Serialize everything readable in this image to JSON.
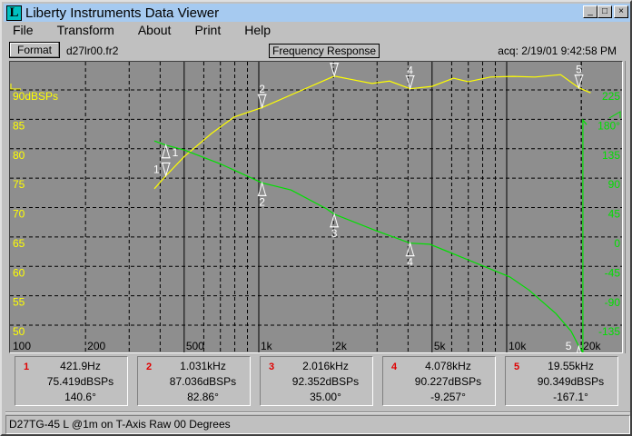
{
  "window": {
    "title": "Liberty Instruments Data Viewer",
    "logo_letter": "L",
    "buttons": [
      "_",
      "□",
      "×"
    ]
  },
  "menu": [
    "File",
    "Transform",
    "About",
    "Print",
    "Help"
  ],
  "toolbar": {
    "format_label": "Format",
    "file_name": "d27lr00.fr2",
    "mode": "Frequency Response",
    "acquired": "acq: 2/19/01 9:42:58 PM"
  },
  "colors": {
    "plot_bg": "#8e8e8e",
    "magnitude": "#ffff00",
    "phase": "#00e000",
    "grid": "#000000",
    "marker": "#ffffff",
    "marker_number": "#e00000"
  },
  "chart_data": {
    "type": "line",
    "x_scale": "log",
    "xlim": [
      100,
      25000
    ],
    "x_ticks": [
      {
        "v": 100,
        "label": "100"
      },
      {
        "v": 200,
        "label": "200"
      },
      {
        "v": 500,
        "label": "500"
      },
      {
        "v": 1000,
        "label": "1k"
      },
      {
        "v": 2000,
        "label": "2k"
      },
      {
        "v": 5000,
        "label": "5k"
      },
      {
        "v": 10000,
        "label": "10k"
      },
      {
        "v": 20000,
        "label": "20k"
      }
    ],
    "left_axis": {
      "unit": "dBSPs",
      "ylim": [
        50,
        90
      ],
      "ticks": [
        {
          "v": 90,
          "label": "90dBSPs"
        },
        {
          "v": 85,
          "label": "85"
        },
        {
          "v": 80,
          "label": "80"
        },
        {
          "v": 75,
          "label": "75"
        },
        {
          "v": 70,
          "label": "70"
        },
        {
          "v": 65,
          "label": "65"
        },
        {
          "v": 60,
          "label": "60"
        },
        {
          "v": 55,
          "label": "55"
        },
        {
          "v": 50,
          "label": "50"
        }
      ]
    },
    "right_axis": {
      "unit": "degrees",
      "ylim": [
        -135,
        225
      ],
      "ticks": [
        {
          "v": 225,
          "label": "225"
        },
        {
          "v": 180,
          "label": "180°"
        },
        {
          "v": 135,
          "label": "135"
        },
        {
          "v": 90,
          "label": "90"
        },
        {
          "v": 45,
          "label": "45"
        },
        {
          "v": 0,
          "label": "0"
        },
        {
          "v": -45,
          "label": "-45"
        },
        {
          "v": -90,
          "label": "-90"
        },
        {
          "v": -135,
          "label": "-135"
        }
      ]
    },
    "grid": true,
    "series": [
      {
        "axis": "left",
        "color": "#ffff00",
        "points": [
          [
            379,
            73.2
          ],
          [
            421.9,
            75.4
          ],
          [
            501,
            78.7
          ],
          [
            645,
            82.6
          ],
          [
            795,
            85.4
          ],
          [
            1031,
            87.0
          ],
          [
            1500,
            90.0
          ],
          [
            2016,
            92.35
          ],
          [
            2860,
            91.1
          ],
          [
            3370,
            91.5
          ],
          [
            4078,
            90.2
          ],
          [
            5000,
            90.6
          ],
          [
            6100,
            92.0
          ],
          [
            7000,
            91.4
          ],
          [
            8600,
            92.2
          ],
          [
            10600,
            92.3
          ],
          [
            13000,
            92.2
          ],
          [
            16500,
            92.6
          ],
          [
            19550,
            90.35
          ],
          [
            21800,
            89.5
          ]
        ]
      },
      {
        "axis": "right",
        "color": "#00e000",
        "points": [
          [
            379,
            147
          ],
          [
            421.9,
            140.6
          ],
          [
            501,
            133
          ],
          [
            700,
            112
          ],
          [
            1031,
            82.86
          ],
          [
            1350,
            72
          ],
          [
            1880,
            43
          ],
          [
            2016,
            35
          ],
          [
            2960,
            10
          ],
          [
            4078,
            -9.26
          ],
          [
            4900,
            -11
          ],
          [
            10300,
            -61
          ],
          [
            12300,
            -81
          ],
          [
            15800,
            -117
          ],
          [
            18200,
            -144
          ],
          [
            19550,
            -167.1
          ],
          [
            20300,
            -176
          ],
          [
            20300,
            179
          ],
          [
            21000,
            172
          ]
        ]
      }
    ],
    "markers": [
      {
        "n": "1",
        "freq": 421.9,
        "mag": 75.419,
        "phase": 140.6
      },
      {
        "n": "2",
        "freq": 1031,
        "mag": 87.036,
        "phase": 82.86
      },
      {
        "n": "3",
        "freq": 2016,
        "mag": 92.352,
        "phase": 35.0
      },
      {
        "n": "4",
        "freq": 4078,
        "mag": 90.227,
        "phase": -9.257
      },
      {
        "n": "5",
        "freq": 19550,
        "mag": 90.349,
        "phase": -167.1
      }
    ]
  },
  "readouts": [
    {
      "n": "1",
      "freq": "421.9Hz",
      "mag": "75.419dBSPs",
      "phase": "140.6°"
    },
    {
      "n": "2",
      "freq": "1.031kHz",
      "mag": "87.036dBSPs",
      "phase": "82.86°"
    },
    {
      "n": "3",
      "freq": "2.016kHz",
      "mag": "92.352dBSPs",
      "phase": "35.00°"
    },
    {
      "n": "4",
      "freq": "4.078kHz",
      "mag": "90.227dBSPs",
      "phase": "-9.257°"
    },
    {
      "n": "5",
      "freq": "19.55kHz",
      "mag": "90.349dBSPs",
      "phase": "-167.1°"
    }
  ],
  "status": "D27TG-45 L @1m on T-Axis Raw 00 Degrees"
}
